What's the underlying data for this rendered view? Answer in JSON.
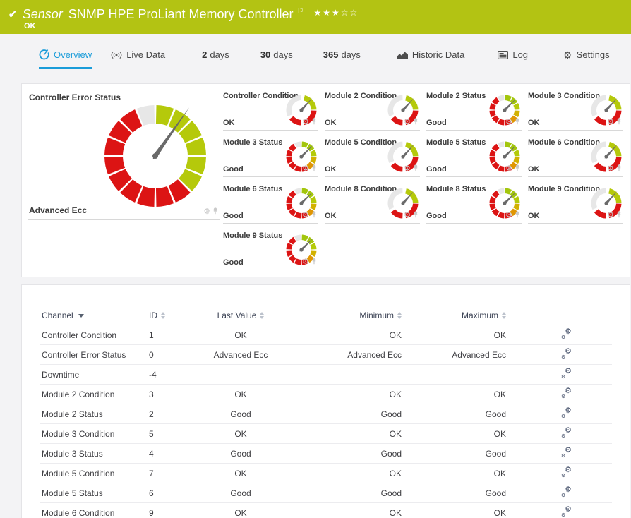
{
  "colors": {
    "header_green": "#b3c313",
    "accent_blue": "#1a9cd9",
    "gauge_green": "#b5c90b",
    "gauge_green_light": "#a3c60d",
    "gauge_green_bright": "#b4ca09",
    "gauge_gold": "#d2b100",
    "gauge_orange": "#e09604",
    "gauge_red": "#dc1414",
    "gauge_gray": "#e7e7e7",
    "needle_gray": "#6a6a6a"
  },
  "icons": {
    "header_check": "✔",
    "flag": "⚐",
    "star_filled": "★",
    "star_empty": "☆",
    "tile_gear": "⚙",
    "tile_pin": "pushpin-shape",
    "settings_gear": "⚙",
    "channel_edit_gear": "⚙"
  },
  "header": {
    "type_label": "Sensor",
    "title": "SNMP HPE ProLiant Memory Controller",
    "status_text": "OK",
    "rating_filled": 3,
    "rating_total": 5
  },
  "tabs": [
    {
      "label": "Overview",
      "icon": "gauge",
      "active": true
    },
    {
      "label": "Live Data",
      "icon": "broadcast",
      "active": false
    },
    {
      "prefix": "2",
      "label": "days",
      "active": false
    },
    {
      "prefix": "30",
      "label": "days",
      "active": false
    },
    {
      "prefix": "365",
      "label": "days",
      "active": false
    },
    {
      "label": "Historic Data",
      "icon": "chart",
      "active": false
    },
    {
      "label": "Log",
      "icon": "log",
      "active": false
    },
    {
      "label": "Settings",
      "icon": "gear",
      "active": false
    }
  ],
  "overview": {
    "primary": {
      "title": "Controller Error Status",
      "value": "Advanced Ecc",
      "kind": "big"
    },
    "tiles": [
      {
        "title": "Controller Condition",
        "value": "OK",
        "kind": "condition"
      },
      {
        "title": "Module 2 Condition",
        "value": "OK",
        "kind": "condition"
      },
      {
        "title": "Module 2 Status",
        "value": "Good",
        "kind": "status"
      },
      {
        "title": "Module 3 Condition",
        "value": "OK",
        "kind": "condition"
      },
      {
        "title": "Module 3 Status",
        "value": "Good",
        "kind": "status"
      },
      {
        "title": "Module 5 Condition",
        "value": "OK",
        "kind": "condition"
      },
      {
        "title": "Module 5 Status",
        "value": "Good",
        "kind": "status"
      },
      {
        "title": "Module 6 Condition",
        "value": "OK",
        "kind": "condition"
      },
      {
        "title": "Module 6 Status",
        "value": "Good",
        "kind": "status"
      },
      {
        "title": "Module 8 Condition",
        "value": "OK",
        "kind": "condition"
      },
      {
        "title": "Module 8 Status",
        "value": "Good",
        "kind": "status"
      },
      {
        "title": "Module 9 Condition",
        "value": "OK",
        "kind": "condition"
      },
      {
        "title": "Module 9 Status",
        "value": "Good",
        "kind": "status"
      }
    ]
  },
  "table": {
    "columns": [
      {
        "label": "Channel",
        "sorted": true
      },
      {
        "label": "ID",
        "sorted": false
      },
      {
        "label": "Last Value",
        "sorted": false
      },
      {
        "label": "Minimum",
        "sorted": false
      },
      {
        "label": "Maximum",
        "sorted": false
      }
    ],
    "rows": [
      [
        "Controller Condition",
        "1",
        "OK",
        "OK",
        "OK"
      ],
      [
        "Controller Error Status",
        "0",
        "Advanced Ecc",
        "Advanced Ecc",
        "Advanced Ecc"
      ],
      [
        "Downtime",
        "-4",
        "",
        "",
        ""
      ],
      [
        "Module 2 Condition",
        "3",
        "OK",
        "OK",
        "OK"
      ],
      [
        "Module 2 Status",
        "2",
        "Good",
        "Good",
        "Good"
      ],
      [
        "Module 3 Condition",
        "5",
        "OK",
        "OK",
        "OK"
      ],
      [
        "Module 3 Status",
        "4",
        "Good",
        "Good",
        "Good"
      ],
      [
        "Module 5 Condition",
        "7",
        "OK",
        "OK",
        "OK"
      ],
      [
        "Module 5 Status",
        "6",
        "Good",
        "Good",
        "Good"
      ],
      [
        "Module 6 Condition",
        "9",
        "OK",
        "OK",
        "OK"
      ]
    ]
  }
}
